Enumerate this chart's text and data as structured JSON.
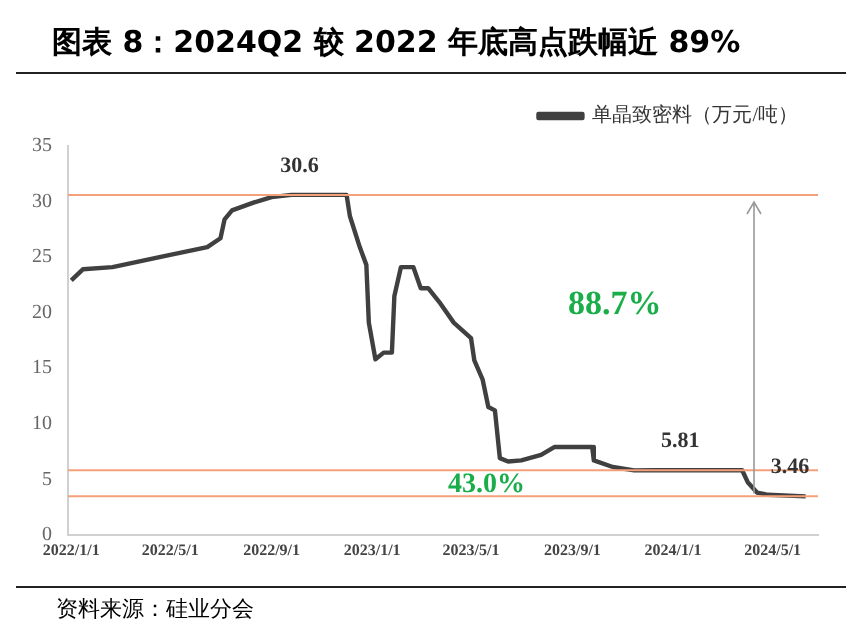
{
  "chart_data": {
    "type": "line",
    "title": "图表 8：2024Q2 较 2022 年底高点跌幅近 89%",
    "x": [
      "2022-01-01",
      "2022-01-15",
      "2022-02-20",
      "2022-05-01",
      "2022-06-15",
      "2022-07-01",
      "2022-07-06",
      "2022-07-15",
      "2022-08-10",
      "2022-09-01",
      "2022-09-25",
      "2022-12-01",
      "2022-12-05",
      "2022-12-17",
      "2022-12-25",
      "2022-12-28",
      "2023-01-05",
      "2023-01-15",
      "2023-01-25",
      "2023-01-28",
      "2023-02-05",
      "2023-02-20",
      "2023-03-01",
      "2023-03-10",
      "2023-03-25",
      "2023-04-10",
      "2023-05-01",
      "2023-05-05",
      "2023-05-15",
      "2023-05-22",
      "2023-05-30",
      "2023-06-05",
      "2023-06-15",
      "2023-07-01",
      "2023-07-25",
      "2023-08-10",
      "2023-09-25",
      "2023-09-27",
      "2023-10-20",
      "2023-11-15",
      "2023-12-10",
      "2024-03-25",
      "2024-04-01",
      "2024-04-12",
      "2024-04-25",
      "2024-06-10"
    ],
    "series": [
      {
        "name": "单晶致密料（万元/吨）",
        "color": "#404040",
        "values": [
          22.9,
          23.9,
          24.1,
          25.2,
          25.9,
          26.7,
          28.4,
          29.2,
          29.9,
          30.4,
          30.6,
          30.6,
          28.7,
          25.9,
          24.3,
          19.1,
          15.8,
          16.4,
          16.4,
          21.5,
          24.1,
          24.1,
          22.2,
          22.2,
          20.8,
          19.1,
          17.7,
          15.7,
          14.0,
          11.5,
          11.2,
          6.9,
          6.6,
          6.7,
          7.2,
          7.9,
          7.9,
          6.7,
          6.1,
          5.8,
          5.81,
          5.81,
          4.7,
          3.8,
          3.6,
          3.46
        ]
      }
    ],
    "xlim": [
      "2021-12-28",
      "2024-06-25"
    ],
    "xticks": [
      {
        "value": "2022-01-01",
        "label": "2022/1/1"
      },
      {
        "value": "2022-05-01",
        "label": "2022/5/1"
      },
      {
        "value": "2022-09-01",
        "label": "2022/9/1"
      },
      {
        "value": "2023-01-01",
        "label": "2023/1/1"
      },
      {
        "value": "2023-05-01",
        "label": "2023/5/1"
      },
      {
        "value": "2023-09-01",
        "label": "2023/9/1"
      },
      {
        "value": "2024-01-01",
        "label": "2024/1/1"
      },
      {
        "value": "2024-05-01",
        "label": "2024/5/1"
      }
    ],
    "ylim": [
      0,
      35
    ],
    "yticks": [
      0,
      5,
      10,
      15,
      20,
      25,
      30,
      35
    ],
    "ref_lines": [
      {
        "axis": "y",
        "value": 30.6,
        "color": "#f4a07a"
      },
      {
        "axis": "y",
        "value": 5.81,
        "color": "#f4a07a"
      },
      {
        "axis": "y",
        "value": 3.46,
        "color": "#f4a07a"
      }
    ],
    "annotations": [
      {
        "text": "30.6",
        "x": "2022-10-05",
        "y": 30.6
      },
      {
        "text": "5.81",
        "x": "2024-01-10",
        "y": 5.81
      },
      {
        "text": "3.46",
        "x": "2024-06-05",
        "y": 3.46
      },
      "88.7%",
      "43.0%",
      "资料来源：硅业分会"
    ],
    "grid": false,
    "legend": "top right",
    "marker": "none",
    "line_style": "solid"
  }
}
